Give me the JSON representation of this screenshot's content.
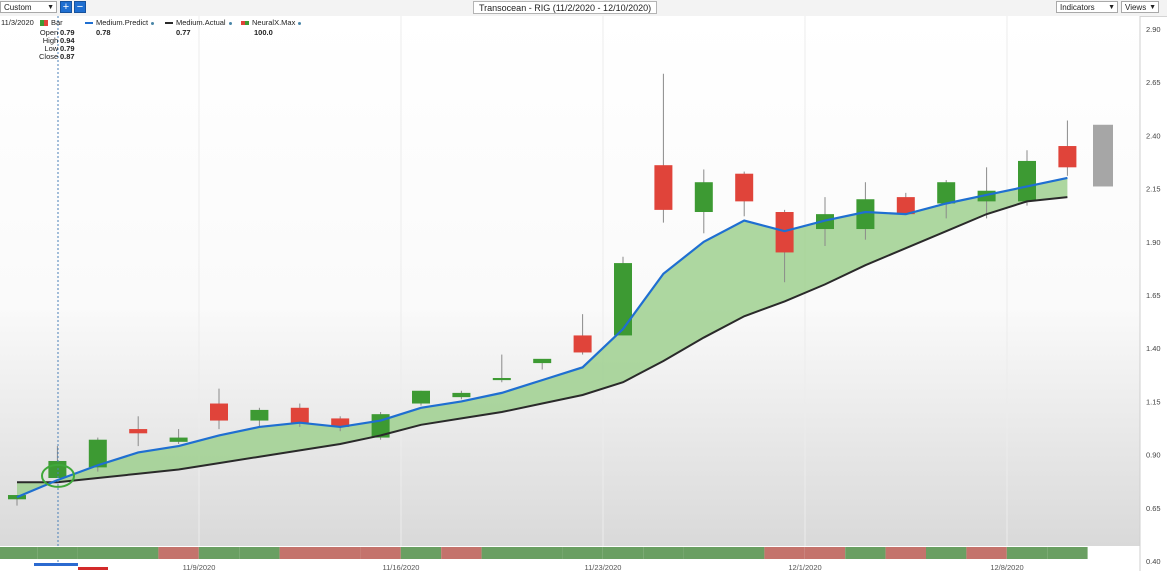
{
  "toolbar": {
    "period_select": "Custom",
    "zoom_in_icon": "plus-icon",
    "zoom_out_icon": "minus-icon",
    "title": "Transocean - RIG (11/2/2020 - 12/10/2020)",
    "indicators_label": "Indicators",
    "views_label": "Views"
  },
  "legend": {
    "date": "11/3/2020",
    "bar_label": "Bar",
    "ohlc": [
      {
        "label": "Open",
        "value": "0.79"
      },
      {
        "label": "High",
        "value": "0.94"
      },
      {
        "label": "Low",
        "value": "0.79"
      },
      {
        "label": "Close",
        "value": "0.87"
      }
    ],
    "predict_label": "Medium.Predict",
    "predict_value": "0.78",
    "actual_label": "Medium.Actual",
    "actual_value": "0.77",
    "neuralx_label": "NeuralX.Max",
    "neuralx_value": "100.0"
  },
  "colors": {
    "up": "#3d9a33",
    "down": "#e0443a",
    "predict": "#1f6fd1",
    "actual": "#2a2a2a",
    "fill": "#9fd08f",
    "forecast": "#a6a6a6",
    "band_green": "#6a9f62",
    "band_red": "#c4736c"
  },
  "chart_data": {
    "type": "candlestick",
    "ylim": [
      0.4,
      2.9
    ],
    "yticks": [
      "2.90",
      "2.65",
      "2.40",
      "2.15",
      "1.90",
      "1.65",
      "1.40",
      "1.15",
      "0.90",
      "0.65",
      "0.40"
    ],
    "xticks": [
      {
        "i": 5,
        "label": "11/9/2020"
      },
      {
        "i": 10,
        "label": "11/16/2020"
      },
      {
        "i": 15,
        "label": "11/23/2020"
      },
      {
        "i": 20,
        "label": "12/1/2020"
      },
      {
        "i": 25,
        "label": "12/8/2020"
      }
    ],
    "candles": [
      {
        "o": 0.69,
        "h": 0.71,
        "l": 0.66,
        "c": 0.71
      },
      {
        "o": 0.79,
        "h": 0.94,
        "l": 0.79,
        "c": 0.87
      },
      {
        "o": 0.84,
        "h": 0.98,
        "l": 0.82,
        "c": 0.97
      },
      {
        "o": 1.02,
        "h": 1.08,
        "l": 0.94,
        "c": 1.0
      },
      {
        "o": 0.96,
        "h": 1.02,
        "l": 0.95,
        "c": 0.98
      },
      {
        "o": 1.14,
        "h": 1.21,
        "l": 1.02,
        "c": 1.06
      },
      {
        "o": 1.06,
        "h": 1.12,
        "l": 1.03,
        "c": 1.11
      },
      {
        "o": 1.12,
        "h": 1.14,
        "l": 1.03,
        "c": 1.05
      },
      {
        "o": 1.07,
        "h": 1.08,
        "l": 1.01,
        "c": 1.03
      },
      {
        "o": 0.98,
        "h": 1.1,
        "l": 0.97,
        "c": 1.09
      },
      {
        "o": 1.14,
        "h": 1.2,
        "l": 1.13,
        "c": 1.2
      },
      {
        "o": 1.17,
        "h": 1.2,
        "l": 1.16,
        "c": 1.19
      },
      {
        "o": 1.25,
        "h": 1.37,
        "l": 1.24,
        "c": 1.26
      },
      {
        "o": 1.33,
        "h": 1.34,
        "l": 1.3,
        "c": 1.35
      },
      {
        "o": 1.46,
        "h": 1.56,
        "l": 1.37,
        "c": 1.38
      },
      {
        "o": 1.46,
        "h": 1.83,
        "l": 1.46,
        "c": 1.8
      },
      {
        "o": 2.26,
        "h": 2.69,
        "l": 1.99,
        "c": 2.05
      },
      {
        "o": 2.04,
        "h": 2.24,
        "l": 1.94,
        "c": 2.18
      },
      {
        "o": 2.22,
        "h": 2.23,
        "l": 2.02,
        "c": 2.09
      },
      {
        "o": 2.04,
        "h": 2.05,
        "l": 1.71,
        "c": 1.85
      },
      {
        "o": 1.96,
        "h": 2.11,
        "l": 1.88,
        "c": 2.03
      },
      {
        "o": 1.96,
        "h": 2.18,
        "l": 1.91,
        "c": 2.1
      },
      {
        "o": 2.11,
        "h": 2.13,
        "l": 2.03,
        "c": 2.03
      },
      {
        "o": 2.08,
        "h": 2.19,
        "l": 2.01,
        "c": 2.18
      },
      {
        "o": 2.09,
        "h": 2.25,
        "l": 2.01,
        "c": 2.14
      },
      {
        "o": 2.09,
        "h": 2.33,
        "l": 2.07,
        "c": 2.28
      },
      {
        "o": 2.35,
        "h": 2.47,
        "l": 2.21,
        "c": 2.25
      }
    ],
    "series": [
      {
        "name": "Medium.Predict",
        "values": [
          0.7,
          0.78,
          0.85,
          0.91,
          0.94,
          0.99,
          1.03,
          1.05,
          1.03,
          1.06,
          1.12,
          1.15,
          1.19,
          1.25,
          1.31,
          1.49,
          1.75,
          1.9,
          2.0,
          1.95,
          2.0,
          2.04,
          2.03,
          2.08,
          2.12,
          2.16,
          2.2
        ]
      },
      {
        "name": "Medium.Actual",
        "values": [
          0.77,
          0.77,
          0.79,
          0.81,
          0.83,
          0.86,
          0.89,
          0.92,
          0.95,
          0.99,
          1.04,
          1.07,
          1.1,
          1.14,
          1.18,
          1.24,
          1.34,
          1.45,
          1.55,
          1.62,
          1.7,
          1.79,
          1.87,
          1.95,
          2.03,
          2.09,
          2.11
        ]
      }
    ],
    "forecast_box": {
      "low": 2.16,
      "high": 2.45
    },
    "neuralx_band": [
      "g",
      "g",
      "g",
      "g",
      "r",
      "g",
      "g",
      "r",
      "r",
      "r",
      "g",
      "r",
      "g",
      "g",
      "g",
      "g",
      "g",
      "g",
      "g",
      "r",
      "r",
      "g",
      "r",
      "g",
      "r",
      "g",
      "g"
    ]
  }
}
